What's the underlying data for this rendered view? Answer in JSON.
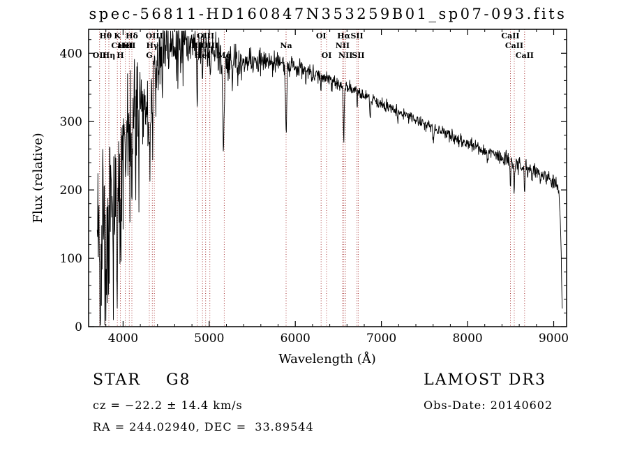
{
  "chart_data": {
    "type": "line",
    "title": "spec-56811-HD160847N353259B01_sp07-093.fits",
    "xlabel": "Wavelength (Å)",
    "ylabel": "Flux (relative)",
    "xlim": [
      3600,
      9150
    ],
    "ylim": [
      0,
      435
    ],
    "xticks": [
      4000,
      5000,
      6000,
      7000,
      8000,
      9000
    ],
    "yticks": [
      0,
      100,
      200,
      300,
      400
    ],
    "xminor_step": 200,
    "yminor_step": 20,
    "data_range": [
      3700,
      9100
    ],
    "sample_step": 4,
    "grid": false,
    "line_color": "#000000",
    "marker_color": "#aa3939",
    "continuum": [
      [
        3700,
        140
      ],
      [
        3760,
        175
      ],
      [
        3820,
        195
      ],
      [
        3880,
        210
      ],
      [
        3940,
        235
      ],
      [
        4000,
        278
      ],
      [
        4060,
        300
      ],
      [
        4120,
        312
      ],
      [
        4200,
        320
      ],
      [
        4260,
        330
      ],
      [
        4320,
        345
      ],
      [
        4380,
        385
      ],
      [
        4440,
        405
      ],
      [
        4520,
        414
      ],
      [
        4620,
        419
      ],
      [
        4720,
        422
      ],
      [
        4820,
        411
      ],
      [
        4920,
        406
      ],
      [
        5020,
        401
      ],
      [
        5120,
        396
      ],
      [
        5240,
        391
      ],
      [
        5400,
        389
      ],
      [
        5600,
        386
      ],
      [
        5800,
        386
      ],
      [
        6000,
        381
      ],
      [
        6200,
        372
      ],
      [
        6400,
        361
      ],
      [
        6600,
        350
      ],
      [
        6800,
        338
      ],
      [
        7000,
        325
      ],
      [
        7200,
        314
      ],
      [
        7400,
        303
      ],
      [
        7600,
        291
      ],
      [
        7800,
        279
      ],
      [
        8000,
        268
      ],
      [
        8200,
        257
      ],
      [
        8400,
        247
      ],
      [
        8600,
        237
      ],
      [
        8800,
        226
      ],
      [
        8950,
        214
      ],
      [
        9030,
        207
      ],
      [
        9060,
        196
      ],
      [
        9080,
        145
      ],
      [
        9092,
        70
      ],
      [
        9100,
        28
      ]
    ],
    "noise_sigma": [
      [
        3700,
        72
      ],
      [
        3800,
        68
      ],
      [
        3900,
        60
      ],
      [
        4000,
        52
      ],
      [
        4100,
        42
      ],
      [
        4200,
        35
      ],
      [
        4300,
        30
      ],
      [
        4450,
        24
      ],
      [
        4600,
        20
      ],
      [
        4800,
        16
      ],
      [
        5000,
        14
      ],
      [
        5200,
        12
      ],
      [
        5500,
        10
      ],
      [
        5800,
        8
      ],
      [
        6100,
        7
      ],
      [
        6400,
        6
      ],
      [
        6700,
        5
      ],
      [
        7000,
        4.5
      ],
      [
        7600,
        4.5
      ],
      [
        8100,
        5
      ],
      [
        8600,
        5.5
      ],
      [
        9100,
        6
      ]
    ],
    "absorption_features": [
      [
        3727,
        90,
        5
      ],
      [
        3798,
        130,
        5
      ],
      [
        3835,
        140,
        5
      ],
      [
        3889,
        120,
        5
      ],
      [
        3934,
        175,
        7
      ],
      [
        3969,
        160,
        7
      ],
      [
        4026,
        60,
        4
      ],
      [
        4072,
        50,
        4
      ],
      [
        4102,
        115,
        6
      ],
      [
        4144,
        50,
        4
      ],
      [
        4227,
        60,
        4
      ],
      [
        4305,
        105,
        8
      ],
      [
        4340,
        85,
        5
      ],
      [
        4383,
        60,
        4
      ],
      [
        4455,
        40,
        4
      ],
      [
        4531,
        38,
        4
      ],
      [
        4668,
        36,
        4
      ],
      [
        4861,
        95,
        5
      ],
      [
        4922,
        32,
        4
      ],
      [
        5015,
        30,
        4
      ],
      [
        5167,
        125,
        9
      ],
      [
        5270,
        48,
        5
      ],
      [
        5332,
        30,
        4
      ],
      [
        5893,
        100,
        7
      ],
      [
        6122,
        25,
        4
      ],
      [
        6300,
        20,
        4
      ],
      [
        6563,
        78,
        5
      ],
      [
        6717,
        22,
        4
      ],
      [
        6870,
        26,
        5
      ],
      [
        7190,
        16,
        5
      ],
      [
        7605,
        18,
        6
      ],
      [
        8230,
        15,
        5
      ],
      [
        8498,
        35,
        5
      ],
      [
        8542,
        45,
        5
      ],
      [
        8662,
        40,
        5
      ],
      [
        8750,
        20,
        5
      ]
    ],
    "spectral_lines": [
      {
        "label": "Hθ",
        "wl": 3798,
        "row": 0
      },
      {
        "label": "K",
        "wl": 3934,
        "row": 0
      },
      {
        "label": "Hδ",
        "wl": 4102,
        "row": 0
      },
      {
        "label": "OIII",
        "wl": 4363,
        "row": 0
      },
      {
        "label": "OIII",
        "wl": 4959,
        "row": 0
      },
      {
        "label": "OI",
        "wl": 6300,
        "row": 0
      },
      {
        "label": "Hα",
        "wl": 6563,
        "row": 0
      },
      {
        "label": "SII",
        "wl": 6716,
        "row": 0
      },
      {
        "label": "CaII",
        "wl": 8498,
        "row": 0
      },
      {
        "label": "CaII",
        "wl": 3969,
        "row": 1
      },
      {
        "label": "HeI",
        "wl": 4026,
        "row": 1
      },
      {
        "label": "SII",
        "wl": 4072,
        "row": 1
      },
      {
        "label": "Hγ",
        "wl": 4340,
        "row": 1
      },
      {
        "label": "Hβ",
        "wl": 4861,
        "row": 1
      },
      {
        "label": "OIII",
        "wl": 5007,
        "row": 1
      },
      {
        "label": "Na",
        "wl": 5893,
        "row": 1
      },
      {
        "label": "NII",
        "wl": 6548,
        "row": 1
      },
      {
        "label": "CaII",
        "wl": 8542,
        "row": 1
      },
      {
        "label": "OII",
        "wl": 3727,
        "row": 2
      },
      {
        "label": "Hη",
        "wl": 3835,
        "row": 2
      },
      {
        "label": "H",
        "wl": 3969,
        "row": 2
      },
      {
        "label": "G",
        "wl": 4305,
        "row": 2
      },
      {
        "label": "HeI",
        "wl": 4922,
        "row": 2
      },
      {
        "label": "Mg",
        "wl": 5175,
        "row": 2
      },
      {
        "label": "OI",
        "wl": 6363,
        "row": 2
      },
      {
        "label": "NII",
        "wl": 6583,
        "row": 2
      },
      {
        "label": "SII",
        "wl": 6731,
        "row": 2
      },
      {
        "label": "CaII",
        "wl": 8662,
        "row": 2
      }
    ]
  },
  "annotations": {
    "object_class": "STAR    G8",
    "survey": "LAMOST DR3",
    "cz": "cz = −22.2 ± 14.4 km/s",
    "obs_date": "Obs-Date: 20140602",
    "coordinates": "RA = 244.02940, DEC =  33.89544"
  }
}
